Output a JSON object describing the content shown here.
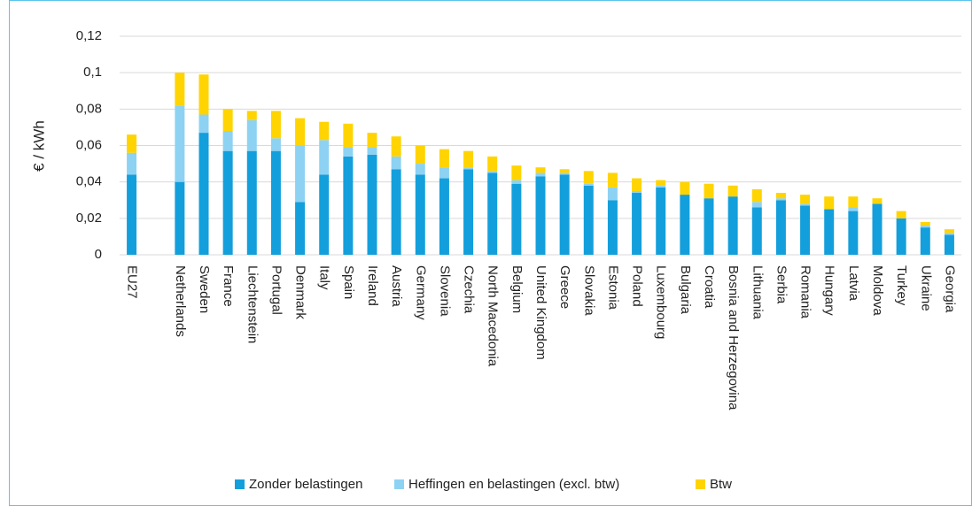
{
  "chart_data": {
    "type": "stacked-bar",
    "ylabel": "€ / kWh",
    "categories": [
      "EU27",
      null,
      "Netherlands",
      "Sweden",
      "France",
      "Liechtenstein",
      "Portugal",
      "Denmark",
      "Italy",
      "Spain",
      "Ireland",
      "Austria",
      "Germany",
      "Slovenia",
      "Czechia",
      "North Macedonia",
      "Belgium",
      "United Kingdom",
      "Greece",
      "Slovakia",
      "Estonia",
      "Poland",
      "Luxembourg",
      "Bulgaria",
      "Croatia",
      "Bosnia and Herzegovina",
      "Lithuania",
      "Serbia",
      "Romania",
      "Hungary",
      "Latvia",
      "Moldova",
      "Turkey",
      "Ukraine",
      "Georgia"
    ],
    "series": [
      {
        "name": "Zonder belastingen",
        "color": "#139fdc",
        "values": [
          0.044,
          null,
          0.04,
          0.067,
          0.057,
          0.057,
          0.057,
          0.029,
          0.044,
          0.054,
          0.055,
          0.047,
          0.044,
          0.042,
          0.047,
          0.045,
          0.039,
          0.043,
          0.044,
          0.038,
          0.03,
          0.034,
          0.037,
          0.033,
          0.031,
          0.032,
          0.026,
          0.03,
          0.027,
          0.025,
          0.024,
          0.028,
          0.02,
          0.015,
          0.011
        ]
      },
      {
        "name": "Heffingen en belastingen (excl. btw)",
        "color": "#8dd2f3",
        "values": [
          0.012,
          null,
          0.042,
          0.01,
          0.011,
          0.017,
          0.007,
          0.031,
          0.019,
          0.005,
          0.004,
          0.007,
          0.006,
          0.006,
          0.001,
          0.001,
          0.002,
          0.002,
          0.001,
          0.001,
          0.007,
          0.001,
          0.001,
          0,
          0,
          0,
          0.003,
          0.001,
          0.001,
          0,
          0.002,
          0,
          0,
          0.001,
          0.001
        ]
      },
      {
        "name": "Btw",
        "color": "#ffd400",
        "values": [
          0.01,
          null,
          0.018,
          0.022,
          0.012,
          0.005,
          0.015,
          0.015,
          0.01,
          0.013,
          0.008,
          0.011,
          0.01,
          0.01,
          0.009,
          0.008,
          0.008,
          0.003,
          0.002,
          0.007,
          0.008,
          0.007,
          0.003,
          0.007,
          0.008,
          0.006,
          0.007,
          0.003,
          0.005,
          0.007,
          0.006,
          0.003,
          0.004,
          0.002,
          0.002
        ]
      }
    ],
    "ylim": [
      0,
      0.12
    ],
    "yticks": [
      0,
      {
        "value": 0.02,
        "label": "0,02"
      },
      {
        "value": 0.04,
        "label": "0,04"
      },
      {
        "value": 0.06,
        "label": "0,06"
      },
      {
        "value": 0.08,
        "label": "0,08"
      },
      {
        "value": 0.1,
        "label": "0,1"
      },
      {
        "value": 0.12,
        "label": "0,12"
      }
    ],
    "grid": true,
    "legend": "bottom"
  }
}
